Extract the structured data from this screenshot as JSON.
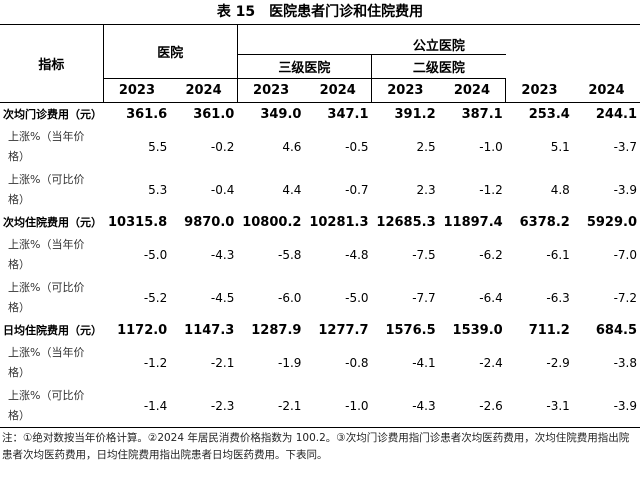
{
  "title": "表 15　医院患者门诊和住院费用",
  "header": {
    "indicator": "指标",
    "hospital": "医院",
    "public": "公立医院",
    "tier3": "三级医院",
    "tier2": "二级医院",
    "years": [
      "2023",
      "2024",
      "2023",
      "2024",
      "2023",
      "2024",
      "2023",
      "2024"
    ]
  },
  "table": {
    "rows": [
      [
        "次均门诊费用（元）",
        "361.6",
        "361.0",
        "349.0",
        "347.1",
        "391.2",
        "387.1",
        "253.4",
        "244.1"
      ],
      [
        "上涨%（当年价格）",
        "5.5",
        "-0.2",
        "4.6",
        "-0.5",
        "2.5",
        "-1.0",
        "5.1",
        "-3.7"
      ],
      [
        "上涨%（可比价格）",
        "5.3",
        "-0.4",
        "4.4",
        "-0.7",
        "2.3",
        "-1.2",
        "4.8",
        "-3.9"
      ],
      [
        "次均住院费用（元）",
        "10315.8",
        "9870.0",
        "10800.2",
        "10281.3",
        "12685.3",
        "11897.4",
        "6378.2",
        "5929.0"
      ],
      [
        "上涨%（当年价格）",
        "-5.0",
        "-4.3",
        "-5.8",
        "-4.8",
        "-7.5",
        "-6.2",
        "-6.1",
        "-7.0"
      ],
      [
        "上涨%（可比价格）",
        "-5.2",
        "-4.5",
        "-6.0",
        "-5.0",
        "-7.7",
        "-6.4",
        "-6.3",
        "-7.2"
      ],
      [
        "日均住院费用（元）",
        "1172.0",
        "1147.3",
        "1287.9",
        "1277.7",
        "1576.5",
        "1539.0",
        "711.2",
        "684.5"
      ],
      [
        "上涨%（当年价格）",
        "-1.2",
        "-2.1",
        "-1.9",
        "-0.8",
        "-4.1",
        "-2.4",
        "-2.9",
        "-3.8"
      ],
      [
        "上涨%（可比价格）",
        "-1.4",
        "-2.3",
        "-2.1",
        "-1.0",
        "-4.3",
        "-2.6",
        "-3.1",
        "-3.9"
      ]
    ]
  },
  "note": "注：①绝对数按当年价格计算。②2024 年居民消费价格指数为 100.2。③次均门诊费用指门诊患者次均医药费用，次均住院费用指出院患者次均医药费用，日均住院费用指出院患者日均医药费用。下表同。"
}
